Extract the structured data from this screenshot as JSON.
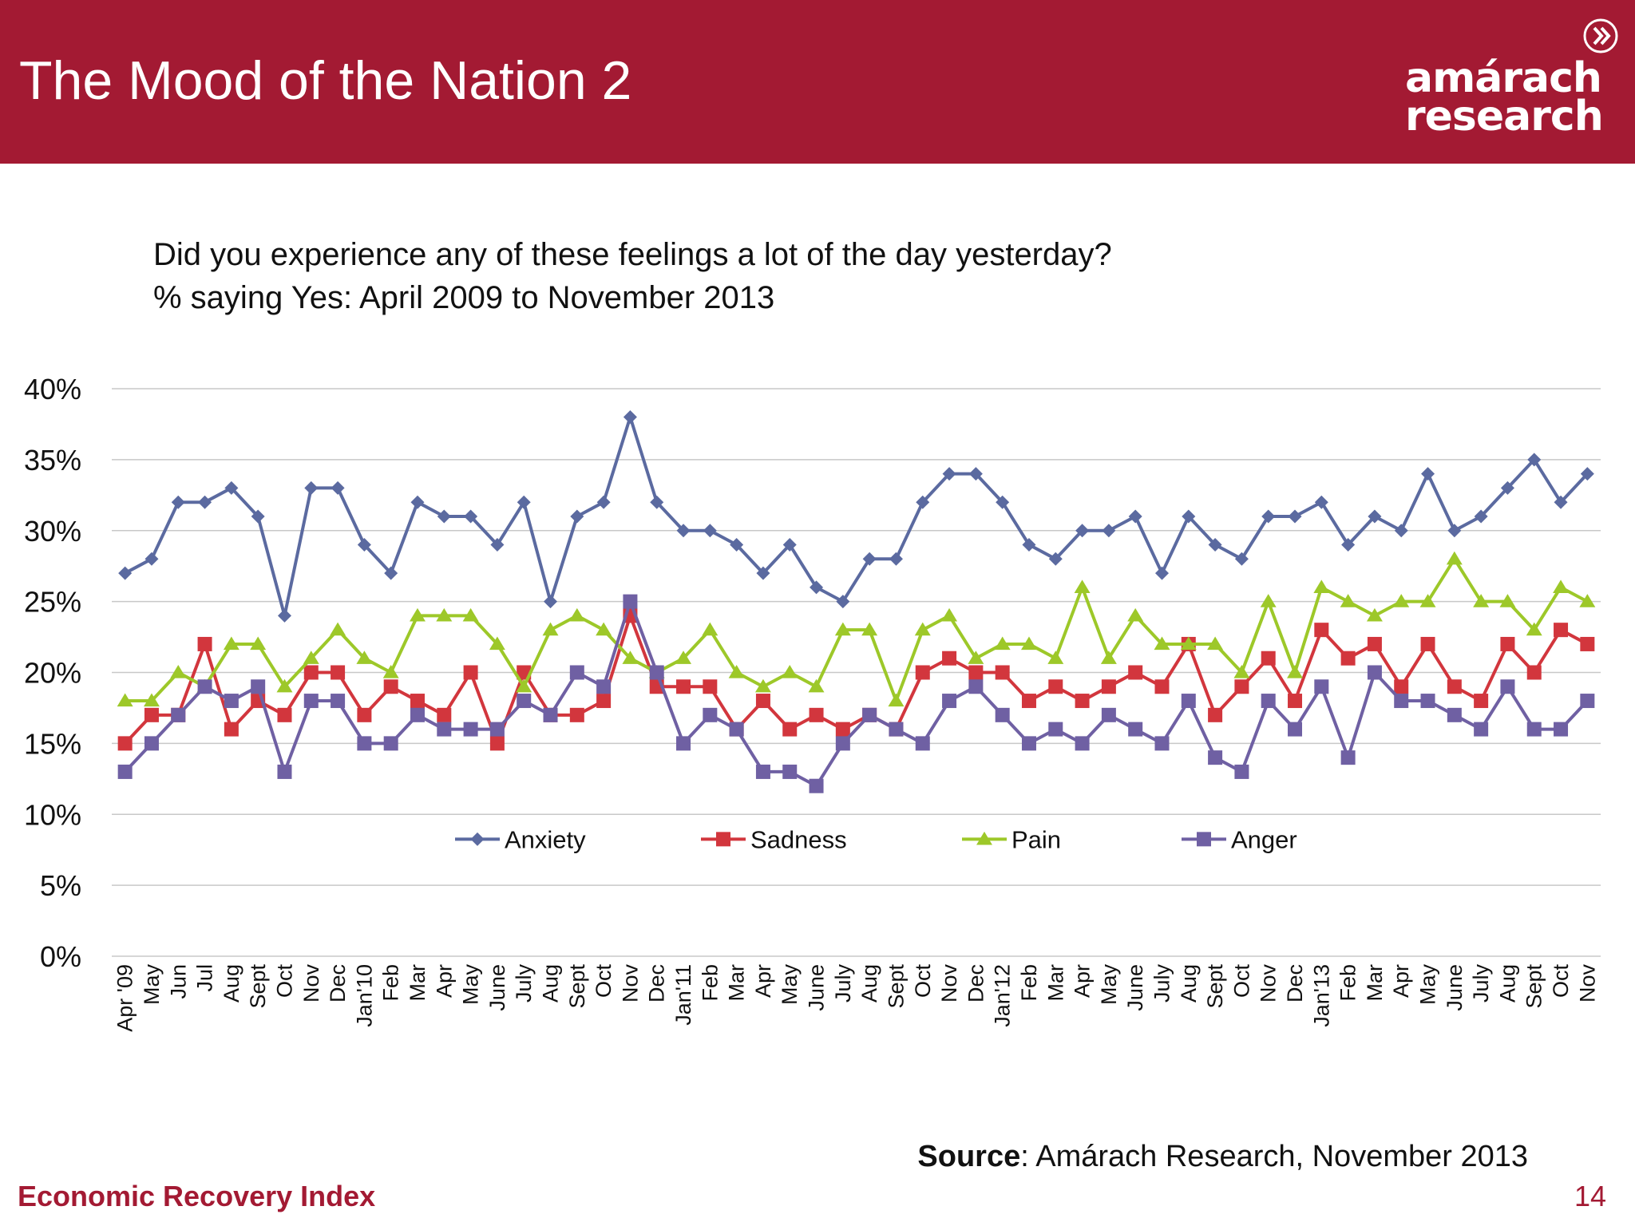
{
  "slide": {
    "title": "The Mood of the Nation 2",
    "logo_line1": "amárach",
    "logo_line2": "research",
    "question_line1": "Did you experience any of these feelings a lot of the day yesterday?",
    "question_line2": "% saying Yes: April 2009 to November 2013",
    "source_label": "Source",
    "source_text": ": Amárach Research, November 2013",
    "footer_left": "Economic Recovery Index",
    "page_number": "14"
  },
  "chart_data": {
    "type": "line",
    "title": "",
    "xlabel": "",
    "ylabel": "",
    "ylim": [
      0,
      40
    ],
    "yticks": [
      0,
      5,
      10,
      15,
      20,
      25,
      30,
      35,
      40
    ],
    "ytick_labels": [
      "0%",
      "5%",
      "10%",
      "15%",
      "20%",
      "25%",
      "30%",
      "35%",
      "40%"
    ],
    "grid": true,
    "legend_position": "inside-bottom",
    "categories": [
      "Apr '09",
      "May",
      "Jun",
      "Jul",
      "Aug",
      "Sept",
      "Oct",
      "Nov",
      "Dec",
      "Jan'10",
      "Feb",
      "Mar",
      "Apr",
      "May",
      "June",
      "July",
      "Aug",
      "Sept",
      "Oct",
      "Nov",
      "Dec",
      "Jan'11",
      "Feb",
      "Mar",
      "Apr",
      "May",
      "June",
      "July",
      "Aug",
      "Sept",
      "Oct",
      "Nov",
      "Dec",
      "Jan'12",
      "Feb",
      "Mar",
      "Apr",
      "May",
      "June",
      "July",
      "Aug",
      "Sept",
      "Oct",
      "Nov",
      "Dec",
      "Jan'13",
      "Feb",
      "Mar",
      "Apr",
      "May",
      "June",
      "July",
      "Aug",
      "Sept",
      "Oct",
      "Nov"
    ],
    "series": [
      {
        "name": "Anxiety",
        "color": "#5b6aa0",
        "marker": "diamond",
        "values": [
          27,
          28,
          32,
          32,
          33,
          31,
          24,
          33,
          33,
          29,
          27,
          32,
          31,
          31,
          29,
          32,
          25,
          31,
          32,
          38,
          32,
          30,
          30,
          29,
          27,
          29,
          26,
          25,
          28,
          28,
          32,
          34,
          34,
          32,
          29,
          28,
          30,
          30,
          31,
          27,
          31,
          29,
          28,
          31,
          31,
          32,
          29,
          31,
          30,
          34,
          30,
          31,
          33,
          35,
          32,
          34
        ]
      },
      {
        "name": "Sadness",
        "color": "#d2363d",
        "marker": "square",
        "values": [
          15,
          17,
          17,
          22,
          16,
          18,
          17,
          20,
          20,
          17,
          19,
          18,
          17,
          20,
          15,
          20,
          17,
          17,
          18,
          24,
          19,
          19,
          19,
          16,
          18,
          16,
          17,
          16,
          17,
          16,
          20,
          21,
          20,
          20,
          18,
          19,
          18,
          19,
          20,
          19,
          22,
          17,
          19,
          21,
          18,
          23,
          21,
          22,
          19,
          22,
          19,
          18,
          22,
          20,
          23,
          22
        ]
      },
      {
        "name": "Pain",
        "color": "#9dc829",
        "marker": "triangle",
        "values": [
          18,
          18,
          20,
          19,
          22,
          22,
          19,
          21,
          23,
          21,
          20,
          24,
          24,
          24,
          22,
          19,
          23,
          24,
          23,
          21,
          20,
          21,
          23,
          20,
          19,
          20,
          19,
          23,
          23,
          18,
          23,
          24,
          21,
          22,
          22,
          21,
          26,
          21,
          24,
          22,
          22,
          22,
          20,
          25,
          20,
          26,
          25,
          24,
          25,
          25,
          28,
          25,
          25,
          23,
          26,
          25
        ]
      },
      {
        "name": "Anger",
        "color": "#6f60a3",
        "marker": "square",
        "values": [
          13,
          15,
          17,
          19,
          18,
          19,
          13,
          18,
          18,
          15,
          15,
          17,
          16,
          16,
          16,
          18,
          17,
          20,
          19,
          25,
          20,
          15,
          17,
          16,
          13,
          13,
          12,
          15,
          17,
          16,
          15,
          18,
          19,
          17,
          15,
          16,
          15,
          17,
          16,
          15,
          18,
          14,
          13,
          18,
          16,
          19,
          14,
          20,
          18,
          18,
          17,
          16,
          19,
          16,
          16,
          18
        ]
      }
    ]
  }
}
